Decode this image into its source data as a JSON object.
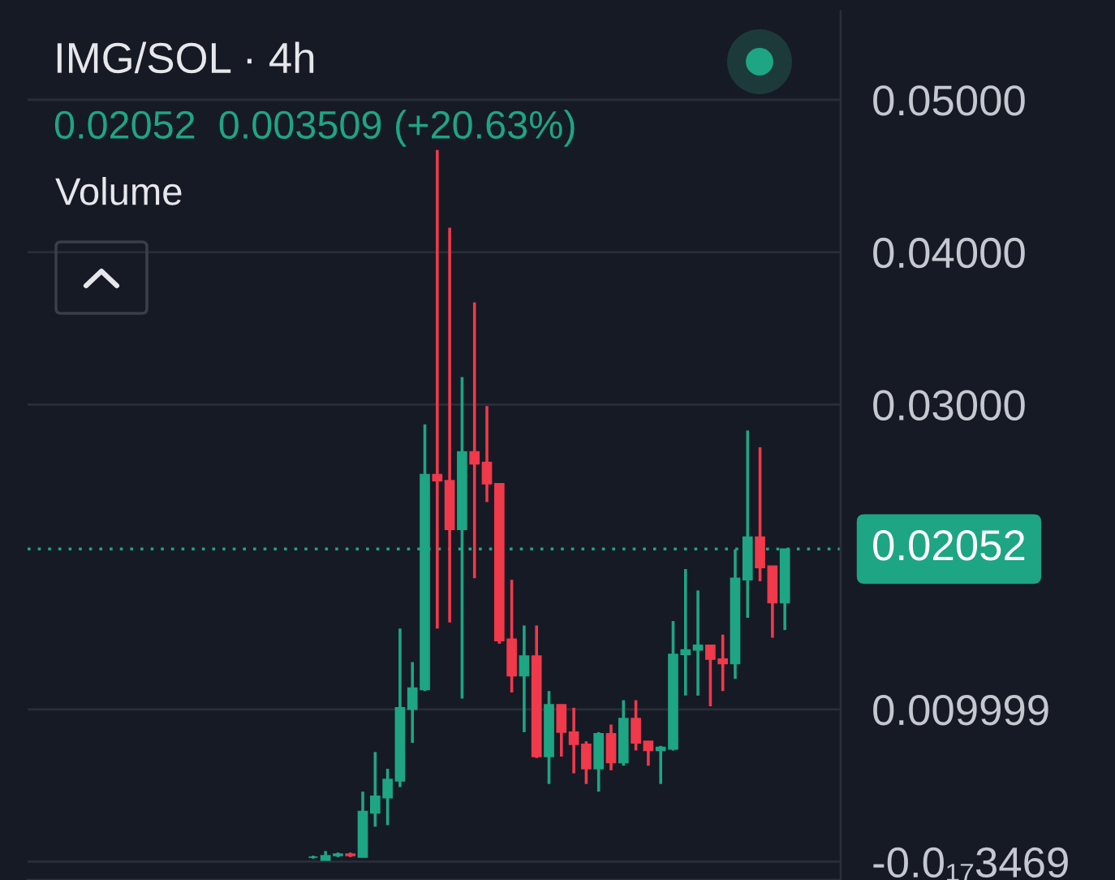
{
  "chart_data": {
    "type": "candlestick",
    "title": "IMG/SOL · 4h",
    "subtitle": "0.02052  0.003509 (+20.63%)",
    "annotations": [
      "Volume"
    ],
    "categories": [
      null,
      null,
      null,
      null,
      null,
      null,
      null,
      null,
      null,
      null,
      null,
      null,
      null,
      null,
      null,
      null,
      null,
      null,
      null,
      null,
      null,
      null,
      null,
      null,
      null,
      null,
      null,
      null,
      null,
      null,
      null,
      null,
      null,
      null,
      null,
      null,
      null,
      null,
      null
    ],
    "ohlc": [
      [
        0.0003,
        0.0004,
        0.0002,
        0.0003
      ],
      [
        0.0001,
        0.0007,
        0.0001,
        0.0004
      ],
      [
        0.0004,
        0.0006,
        0.0003,
        0.0005
      ],
      [
        0.0005,
        0.0006,
        0.0003,
        0.0004
      ],
      [
        0.0003,
        0.0046,
        0.0003,
        0.0033
      ],
      [
        0.0032,
        0.0072,
        0.0023,
        0.0043
      ],
      [
        0.0042,
        0.0061,
        0.0024,
        0.0054
      ],
      [
        0.0053,
        0.0153,
        0.0049,
        0.0101
      ],
      [
        0.01,
        0.0131,
        0.0078,
        0.0114
      ],
      [
        0.0113,
        0.0287,
        0.0112,
        0.0254
      ],
      [
        0.0254,
        0.0467,
        0.0153,
        0.025
      ],
      [
        0.025,
        0.0416,
        0.0157,
        0.0218
      ],
      [
        0.0218,
        0.0318,
        0.0107,
        0.0269
      ],
      [
        0.0269,
        0.0367,
        0.0186,
        0.0261
      ],
      [
        0.0262,
        0.0299,
        0.0236,
        0.0248
      ],
      [
        0.0248,
        0.0248,
        0.0143,
        0.0145
      ],
      [
        0.0146,
        0.0185,
        0.0111,
        0.0122
      ],
      [
        0.0122,
        0.0155,
        0.0085,
        0.0135
      ],
      [
        0.0135,
        0.0155,
        0.0068,
        0.0069
      ],
      [
        0.0069,
        0.0112,
        0.0051,
        0.0103
      ],
      [
        0.0103,
        0.0103,
        0.0069,
        0.0085
      ],
      [
        0.0085,
        0.0101,
        0.0058,
        0.0077
      ],
      [
        0.0077,
        0.0079,
        0.0051,
        0.0061
      ],
      [
        0.0061,
        0.0085,
        0.0046,
        0.0084
      ],
      [
        0.0084,
        0.009,
        0.006,
        0.0065
      ],
      [
        0.0065,
        0.0106,
        0.0063,
        0.0094
      ],
      [
        0.0094,
        0.0106,
        0.0073,
        0.0078
      ],
      [
        0.0079,
        0.0079,
        0.0063,
        0.0073
      ],
      [
        0.0073,
        0.0076,
        0.0051,
        0.0075
      ],
      [
        0.0074,
        0.0158,
        0.0073,
        0.0136
      ],
      [
        0.0136,
        0.0192,
        0.0109,
        0.0139
      ],
      [
        0.0139,
        0.0178,
        0.0109,
        0.0142
      ],
      [
        0.0142,
        0.0142,
        0.0102,
        0.0133
      ],
      [
        0.0133,
        0.0149,
        0.0112,
        0.013
      ],
      [
        0.013,
        0.0205,
        0.012,
        0.0186
      ],
      [
        0.0185,
        0.0283,
        0.016,
        0.0213
      ],
      [
        0.0213,
        0.0272,
        0.0184,
        0.0193
      ],
      [
        0.0194,
        0.0194,
        0.0147,
        0.017
      ],
      [
        0.017,
        0.02052,
        0.0152,
        0.02052
      ]
    ],
    "colors": [
      "#1ea584",
      "#1ea584",
      "#1ea584",
      "#f0394b",
      "#1ea584",
      "#1ea584",
      "#1ea584",
      "#1ea584",
      "#1ea584",
      "#1ea584",
      "#f0394b",
      "#f0394b",
      "#1ea584",
      "#f0394b",
      "#f0394b",
      "#f0394b",
      "#f0394b",
      "#1ea584",
      "#f0394b",
      "#1ea584",
      "#f0394b",
      "#f0394b",
      "#f0394b",
      "#1ea584",
      "#f0394b",
      "#1ea584",
      "#f0394b",
      "#f0394b",
      "#1ea584",
      "#1ea584",
      "#1ea584",
      "#1ea584",
      "#f0394b",
      "#f0394b",
      "#1ea584",
      "#1ea584",
      "#f0394b",
      "#f0394b",
      "#1ea584"
    ],
    "ylim": [
      -0.0012,
      0.0558
    ],
    "yticks": [
      {
        "value": 0.05,
        "label": "0.05000"
      },
      {
        "value": 0.04,
        "label": "0.04000"
      },
      {
        "value": 0.03,
        "label": "0.03000"
      },
      0.009999,
      {
        "value": -3.469e-19,
        "label": "-0.0₁₇3469"
      }
    ],
    "ref_lines": [
      {
        "axis": "y",
        "value": 0.02052,
        "label": "0.02052",
        "color": "#1ea584",
        "line_style": "dotted"
      }
    ],
    "grid": "y",
    "tick_labels": "y"
  }
}
